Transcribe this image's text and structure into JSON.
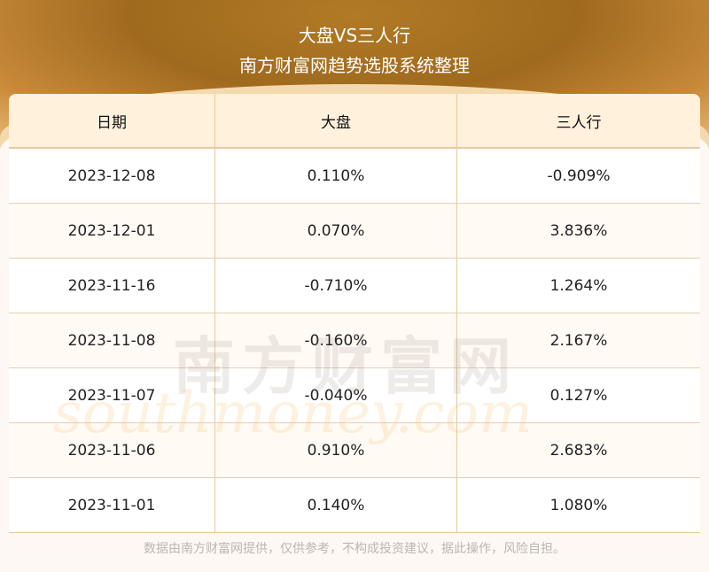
{
  "header": {
    "title": "大盘VS三人行",
    "subtitle": "南方财富网趋势选股系统整理"
  },
  "watermark": {
    "cn": "南方财富网",
    "en": "southmoney.com"
  },
  "chart_data": {
    "type": "table",
    "columns": [
      "日期",
      "大盘",
      "三人行"
    ],
    "rows": [
      [
        "2023-12-08",
        "0.110%",
        "-0.909%"
      ],
      [
        "2023-12-01",
        "0.070%",
        "3.836%"
      ],
      [
        "2023-11-16",
        "-0.710%",
        "1.264%"
      ],
      [
        "2023-11-08",
        "-0.160%",
        "2.167%"
      ],
      [
        "2023-11-07",
        "-0.040%",
        "0.127%"
      ],
      [
        "2023-11-06",
        "0.910%",
        "2.683%"
      ],
      [
        "2023-11-01",
        "0.140%",
        "1.080%"
      ]
    ]
  },
  "footer": {
    "disclaimer": "数据由南方财富网提供，仅供参考，不构成投资建议，据此操作，风险自担。"
  },
  "colors": {
    "header_bg": "#fff1dc",
    "border": "#e8c79c",
    "banner": "#a06a1e"
  }
}
